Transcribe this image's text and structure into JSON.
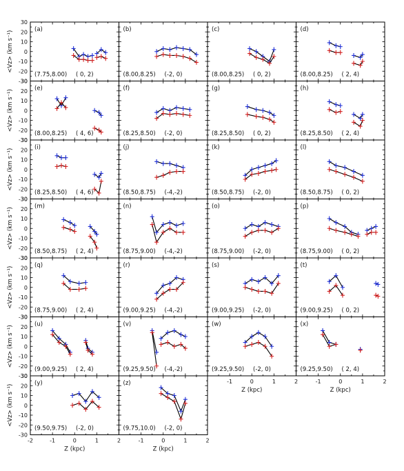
{
  "colors": {
    "blue": "#1f2fd6",
    "red": "#d42020",
    "axis": "#000000",
    "line": "#000000"
  },
  "chart_data": {
    "type": "line",
    "layout": "7x4 panel grid",
    "xlim": [
      -2,
      2
    ],
    "ylim": [
      -30,
      30
    ],
    "xlabel": "Z (kpc)",
    "ylabel": "<Vz> (km s⁻¹)",
    "xticks": [
      "-2",
      "-1",
      "0",
      "1",
      "2"
    ],
    "yticks": [
      "30",
      "20",
      "10",
      "0",
      "-10",
      "-20",
      "-30"
    ],
    "series_colors": [
      "blue",
      "red"
    ],
    "panels": [
      {
        "id": "(a)",
        "r": "(7.75,8.00)",
        "lz": "( 0, 2)",
        "segments": [
          {
            "z": [
              -0.05,
              0.2,
              0.4,
              0.6,
              0.8
            ],
            "b": [
              3,
              -5,
              -3,
              -5,
              -4
            ],
            "d": [
              -4,
              -8,
              -8,
              -9,
              -9
            ]
          },
          {
            "z": [
              1.0,
              1.2,
              1.4
            ],
            "b": [
              -2,
              2,
              -1
            ],
            "d": [
              -6,
              -5,
              -7
            ]
          }
        ]
      },
      {
        "id": "(b)",
        "r": "(8.00,8.25)",
        "lz": "(-2, 0)",
        "segments": [
          {
            "z": [
              -0.3,
              0,
              0.3,
              0.6,
              0.9,
              1.2,
              1.5
            ],
            "b": [
              0,
              3,
              2,
              4,
              3,
              2,
              -3
            ],
            "d": [
              -5,
              -3,
              -4,
              -4,
              -5,
              -7,
              -11
            ]
          }
        ]
      },
      {
        "id": "(c)",
        "r": "(8.00,8.25)",
        "lz": "( 0, 2)",
        "segments": [
          {
            "z": [
              -0.1,
              0.2,
              0.5,
              0.8,
              1.0
            ],
            "b": [
              3,
              0,
              -5,
              -10,
              2
            ],
            "d": [
              -2,
              -6,
              -8,
              -12,
              -5
            ]
          }
        ]
      },
      {
        "id": "(d)",
        "r": "(8.00,8.25)",
        "lz": "( 2, 4)",
        "segments": [
          {
            "z": [
              -0.5,
              -0.2,
              0.0
            ],
            "b": [
              9,
              6,
              5
            ],
            "d": [
              1,
              -1,
              -1
            ]
          },
          {
            "z": [
              0.6,
              0.9,
              1.0
            ],
            "b": [
              -4,
              -6,
              -3
            ],
            "d": [
              -12,
              -14,
              -10
            ]
          }
        ]
      },
      {
        "id": "(e)",
        "r": "(8.00,8.25)",
        "lz": "( 4, 6)",
        "segments": [
          {
            "z": [
              -0.8,
              -0.6,
              -0.4
            ],
            "b": [
              12,
              5,
              13
            ],
            "d": [
              2,
              8,
              3
            ]
          },
          {
            "z": [
              0.9,
              1.1,
              1.2
            ],
            "b": [
              0,
              -2,
              -5
            ],
            "d": [
              -18,
              -20,
              -22
            ]
          }
        ]
      },
      {
        "id": "(f)",
        "r": "(8.25,8.50)",
        "lz": "(-2, 0)",
        "segments": [
          {
            "z": [
              -0.3,
              0,
              0.3,
              0.6,
              0.9,
              1.2
            ],
            "b": [
              -2,
              2,
              0,
              3,
              2,
              1
            ],
            "d": [
              -8,
              -3,
              -4,
              -3,
              -4,
              -5
            ]
          }
        ]
      },
      {
        "id": "(g)",
        "r": "(8.25,8.50)",
        "lz": "( 0, 2)",
        "segments": [
          {
            "z": [
              -0.2,
              0.2,
              0.5,
              0.8,
              1.0
            ],
            "b": [
              4,
              1,
              0,
              -2,
              -5
            ],
            "d": [
              -4,
              -6,
              -7,
              -9,
              -12
            ]
          }
        ]
      },
      {
        "id": "(h)",
        "r": "(8.25,8.50)",
        "lz": "( 2, 4)",
        "segments": [
          {
            "z": [
              -0.5,
              -0.2,
              0.0
            ],
            "b": [
              9,
              6,
              5
            ],
            "d": [
              1,
              -2,
              -1
            ]
          },
          {
            "z": [
              0.6,
              0.9,
              1.0
            ],
            "b": [
              -4,
              -8,
              -4
            ],
            "d": [
              -12,
              -16,
              -10
            ]
          }
        ]
      },
      {
        "id": "(i)",
        "r": "(8.25,8.50)",
        "lz": "( 4, 6)",
        "segments": [
          {
            "z": [
              -0.8,
              -0.6,
              -0.4
            ],
            "b": [
              14,
              12,
              12
            ],
            "d": [
              3,
              4,
              3
            ]
          },
          {
            "z": [
              0.9,
              1.1,
              1.2
            ],
            "b": [
              -5,
              -8,
              -4
            ],
            "d": [
              -20,
              -24,
              -12
            ]
          }
        ]
      },
      {
        "id": "(j)",
        "r": "(8.50,8.75)",
        "lz": "(-4,-2)",
        "segments": [
          {
            "z": [
              -0.3,
              0.0,
              0.3,
              0.6,
              0.9
            ],
            "b": [
              8,
              6,
              6,
              4,
              2
            ],
            "d": [
              -8,
              -6,
              -3,
              -2,
              -2
            ]
          }
        ]
      },
      {
        "id": "(k)",
        "r": "(8.50,8.75)",
        "lz": "(-2, 0)",
        "segments": [
          {
            "z": [
              -0.3,
              0,
              0.3,
              0.6,
              0.9,
              1.1
            ],
            "b": [
              -6,
              0,
              2,
              4,
              6,
              9
            ],
            "d": [
              -10,
              -5,
              -4,
              -2,
              -1,
              0
            ]
          }
        ]
      },
      {
        "id": "(l)",
        "r": "(8.50,8.75)",
        "lz": "( 0, 2)",
        "segments": [
          {
            "z": [
              -0.5,
              -0.2,
              0.2,
              0.6,
              1.0
            ],
            "b": [
              8,
              4,
              2,
              -2,
              -6
            ],
            "d": [
              0,
              -2,
              -5,
              -8,
              -12
            ]
          }
        ]
      },
      {
        "id": "(m)",
        "r": "(8.50,8.75)",
        "lz": "( 2, 4)",
        "segments": [
          {
            "z": [
              -0.5,
              -0.2,
              0.0
            ],
            "b": [
              9,
              6,
              3
            ],
            "d": [
              1,
              -1,
              -3
            ]
          },
          {
            "z": [
              0.7,
              0.9,
              1.0
            ],
            "b": [
              2,
              -3,
              -6
            ],
            "d": [
              -8,
              -14,
              -20
            ]
          }
        ]
      },
      {
        "id": "(n)",
        "r": "(8.75,9.00)",
        "lz": "(-4,-2)",
        "segments": [
          {
            "z": [
              -0.5,
              -0.3,
              0.0,
              0.3,
              0.6,
              0.9
            ],
            "b": [
              12,
              -4,
              4,
              6,
              3,
              5
            ],
            "d": [
              4,
              -14,
              -4,
              0,
              -4,
              -4
            ]
          }
        ]
      },
      {
        "id": "(o)",
        "r": "(8.75,9.00)",
        "lz": "(-2, 0)",
        "segments": [
          {
            "z": [
              -0.3,
              0,
              0.3,
              0.6,
              0.9,
              1.2
            ],
            "b": [
              0,
              4,
              2,
              6,
              4,
              2
            ],
            "d": [
              -8,
              -4,
              -2,
              -2,
              -4,
              0
            ]
          }
        ]
      },
      {
        "id": "(p)",
        "r": "(8.75,9.00)",
        "lz": "( 0, 2)",
        "segments": [
          {
            "z": [
              -0.5,
              -0.2,
              0.2,
              0.5,
              0.8
            ],
            "b": [
              10,
              6,
              2,
              -4,
              -6
            ],
            "d": [
              0,
              -2,
              -4,
              -6,
              -8
            ]
          },
          {
            "z": [
              1.2,
              1.4,
              1.6
            ],
            "b": [
              -2,
              0,
              2
            ],
            "d": [
              -6,
              -4,
              -4
            ]
          }
        ]
      },
      {
        "id": "(q)",
        "r": "(8.75,9.00)",
        "lz": "( 2, 4)",
        "segments": [
          {
            "z": [
              -0.5,
              -0.2,
              0.2,
              0.5
            ],
            "b": [
              12,
              6,
              4,
              5
            ],
            "d": [
              4,
              -2,
              -2,
              -1
            ]
          }
        ]
      },
      {
        "id": "(r)",
        "r": "(9.00,9.25)",
        "lz": "(-4,-2)",
        "segments": [
          {
            "z": [
              -0.3,
              0.0,
              0.3,
              0.6,
              0.9
            ],
            "b": [
              -6,
              2,
              4,
              10,
              8
            ],
            "d": [
              -12,
              -6,
              -2,
              -2,
              5
            ]
          }
        ]
      },
      {
        "id": "(s)",
        "r": "(9.00,9.25)",
        "lz": "(-2, 0)",
        "segments": [
          {
            "z": [
              -0.3,
              0,
              0.3,
              0.6,
              0.9,
              1.2
            ],
            "b": [
              4,
              8,
              6,
              10,
              4,
              12
            ],
            "d": [
              0,
              -2,
              -4,
              -4,
              -6,
              4
            ]
          }
        ]
      },
      {
        "id": "(t)",
        "r": "(9.00,9.25)",
        "lz": "( 0, 2)",
        "segments": [
          {
            "z": [
              -0.5,
              -0.2,
              0.1
            ],
            "b": [
              6,
              12,
              0
            ],
            "d": [
              -4,
              2,
              -8
            ]
          },
          {
            "z": [
              1.6,
              1.7
            ],
            "b": [
              4,
              3
            ],
            "d": [
              -8,
              -9
            ]
          }
        ]
      },
      {
        "id": "(u)",
        "r": "(9.00,9.25)",
        "lz": "( 2, 4)",
        "segments": [
          {
            "z": [
              -1.0,
              -0.7,
              -0.4,
              -0.2
            ],
            "b": [
              16,
              8,
              2,
              -6
            ],
            "d": [
              12,
              4,
              0,
              -8
            ]
          },
          {
            "z": [
              0.5,
              0.6,
              0.8
            ],
            "b": [
              6,
              -2,
              -6
            ],
            "d": [
              4,
              -4,
              -8
            ]
          }
        ]
      },
      {
        "id": "(v)",
        "r": "(9.25,9.50)",
        "lz": "(-4,-2)",
        "segments": [
          {
            "z": [
              -0.5,
              -0.3
            ],
            "b": [
              16,
              -6
            ],
            "d": [
              14,
              -20
            ]
          },
          {
            "z": [
              -0.1,
              0.2,
              0.5,
              0.8,
              1.0
            ],
            "b": [
              8,
              14,
              16,
              12,
              10
            ],
            "d": [
              2,
              4,
              0,
              2,
              -2
            ]
          }
        ]
      },
      {
        "id": "(w)",
        "r": "(9.25,9.50)",
        "lz": "(-2, 0)",
        "segments": [
          {
            "z": [
              -0.3,
              0,
              0.3,
              0.6,
              0.9
            ],
            "b": [
              4,
              10,
              14,
              10,
              0
            ],
            "d": [
              0,
              2,
              4,
              0,
              -10
            ]
          }
        ]
      },
      {
        "id": "(x)",
        "r": "(9.25,9.50)",
        "lz": "( 2, 4)",
        "segments": [
          {
            "z": [
              -0.8,
              -0.5,
              -0.2
            ],
            "b": [
              16,
              4,
              2
            ],
            "d": [
              12,
              0,
              2
            ]
          },
          {
            "z": [
              0.9
            ],
            "b": [
              -3
            ],
            "d": [
              -4
            ]
          }
        ]
      },
      {
        "id": "(y)",
        "r": "(9.50,9.75)",
        "lz": "(-2, 0)",
        "segments": [
          {
            "z": [
              -0.1,
              0.2,
              0.5,
              0.8,
              1.1
            ],
            "b": [
              10,
              12,
              4,
              14,
              8
            ],
            "d": [
              0,
              2,
              -4,
              4,
              -2
            ]
          }
        ]
      },
      {
        "id": "(z)",
        "r": "(9.75,10.0)",
        "lz": "(-2, 0)",
        "segments": [
          {
            "z": [
              -0.1,
              0.2,
              0.5,
              0.8,
              1.0
            ],
            "b": [
              18,
              12,
              10,
              -6,
              6
            ],
            "d": [
              12,
              8,
              4,
              -14,
              2
            ]
          }
        ]
      }
    ]
  }
}
